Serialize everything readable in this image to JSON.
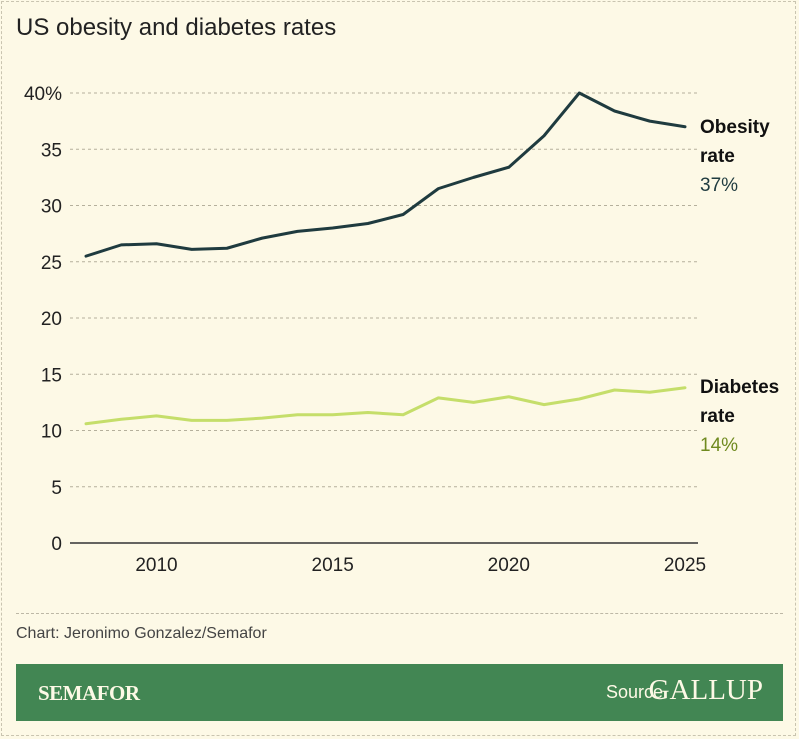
{
  "chart_data": {
    "type": "line",
    "title": "US obesity and diabetes rates",
    "x": [
      2008,
      2009,
      2010,
      2011,
      2012,
      2013,
      2014,
      2015,
      2016,
      2017,
      2018,
      2019,
      2020,
      2021,
      2022,
      2023,
      2024,
      2025
    ],
    "series": [
      {
        "name": "Obesity rate",
        "end_label": "37%",
        "color": "#1f3b3f",
        "values": [
          25.5,
          26.5,
          26.6,
          26.1,
          26.2,
          27.1,
          27.7,
          28.0,
          28.4,
          29.2,
          31.5,
          32.5,
          33.4,
          36.2,
          40.0,
          38.4,
          37.5,
          37.0
        ]
      },
      {
        "name": "Diabetes rate",
        "end_label": "14%",
        "color": "#c5de6a",
        "label_color": "#6f8a1f",
        "values": [
          10.6,
          11.0,
          11.3,
          10.9,
          10.9,
          11.1,
          11.4,
          11.4,
          11.6,
          11.4,
          12.9,
          12.5,
          13.0,
          12.3,
          12.8,
          13.6,
          13.4,
          13.8
        ]
      }
    ],
    "ylim": [
      0,
      40
    ],
    "yticks": [
      "0",
      "5",
      "10",
      "15",
      "20",
      "25",
      "30",
      "35",
      "40%"
    ],
    "ytick_values": [
      0,
      5,
      10,
      15,
      20,
      25,
      30,
      35,
      40
    ],
    "xticks": [
      "2010",
      "2015",
      "2020",
      "2025"
    ],
    "xtick_values": [
      2010,
      2015,
      2020,
      2025
    ],
    "xlim": [
      2008,
      2025
    ],
    "grid": "horizontal dashed"
  },
  "credit": "Chart: Jeronimo Gonzalez/Semafor",
  "footer": {
    "brand": "SEMAFOR",
    "source_label": "Source",
    "source": "GALLUP"
  },
  "labels": {
    "obesity_l1": "Obesity",
    "obesity_l2": "rate",
    "diabetes_l1": "Diabetes",
    "diabetes_l2": "rate"
  }
}
